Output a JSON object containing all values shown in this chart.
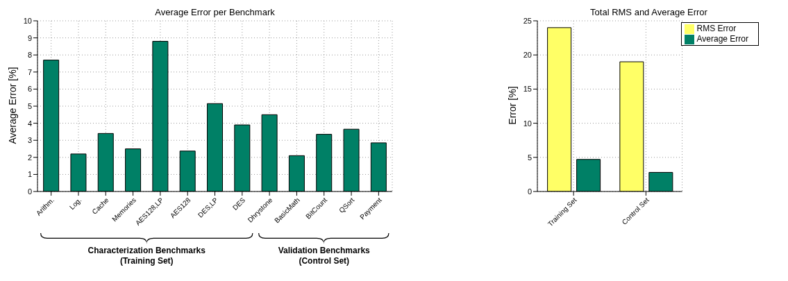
{
  "chart_data": [
    {
      "type": "bar",
      "title": "Average Error per Benchmark",
      "ylabel": "Average Error [%]",
      "categories": [
        "Arithm.",
        "Log.",
        "Cache",
        "Memories",
        "AES128,LP",
        "AES128",
        "DES,LP",
        "DES",
        "Dhrystone",
        "BasicMath",
        "BitCount",
        "QSort",
        "Payment"
      ],
      "values": [
        7.7,
        2.2,
        3.4,
        2.5,
        8.8,
        2.37,
        5.15,
        3.9,
        4.5,
        2.1,
        3.35,
        3.65,
        2.85
      ],
      "color": "#008066",
      "ylim": [
        0,
        10
      ],
      "yticks": [
        0,
        1,
        2,
        3,
        4,
        5,
        6,
        7,
        8,
        9,
        10
      ],
      "grid": true,
      "legend": false,
      "annotations": [
        "Characterization Benchmarks\n(Training Set)",
        "Validation Benchmarks\n(Control Set)"
      ]
    },
    {
      "type": "bar",
      "title": "Total RMS and Average Error",
      "ylabel": "Error [%]",
      "categories": [
        "Training Set",
        "Control Set"
      ],
      "series": [
        {
          "name": "RMS Error",
          "color": "#ffff66",
          "values": [
            24,
            19
          ]
        },
        {
          "name": "Average Error",
          "color": "#008066",
          "values": [
            4.7,
            2.8
          ]
        }
      ],
      "ylim": [
        0,
        25
      ],
      "yticks": [
        0,
        5,
        10,
        15,
        20,
        25
      ],
      "grid": true,
      "legend": "top right"
    }
  ]
}
